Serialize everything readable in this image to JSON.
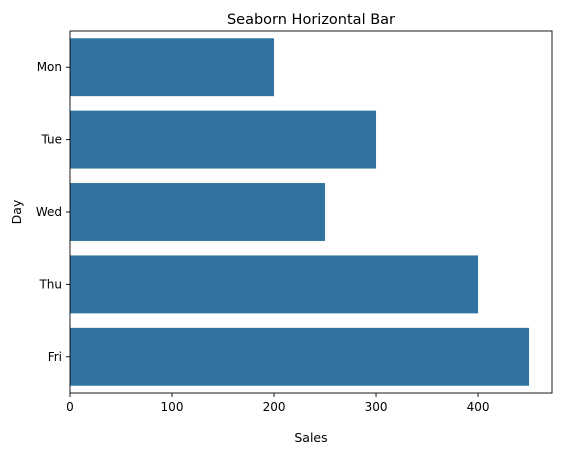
{
  "chart_data": {
    "type": "bar",
    "orientation": "horizontal",
    "title": "Seaborn Horizontal Bar",
    "xlabel": "Sales",
    "ylabel": "Day",
    "categories": [
      "Mon",
      "Tue",
      "Wed",
      "Thu",
      "Fri"
    ],
    "values": [
      200,
      300,
      250,
      400,
      450
    ],
    "xlim": [
      0,
      472.5
    ],
    "xticks": [
      0,
      100,
      200,
      300,
      400
    ],
    "grid": false,
    "bar_color": "#3274a1"
  }
}
